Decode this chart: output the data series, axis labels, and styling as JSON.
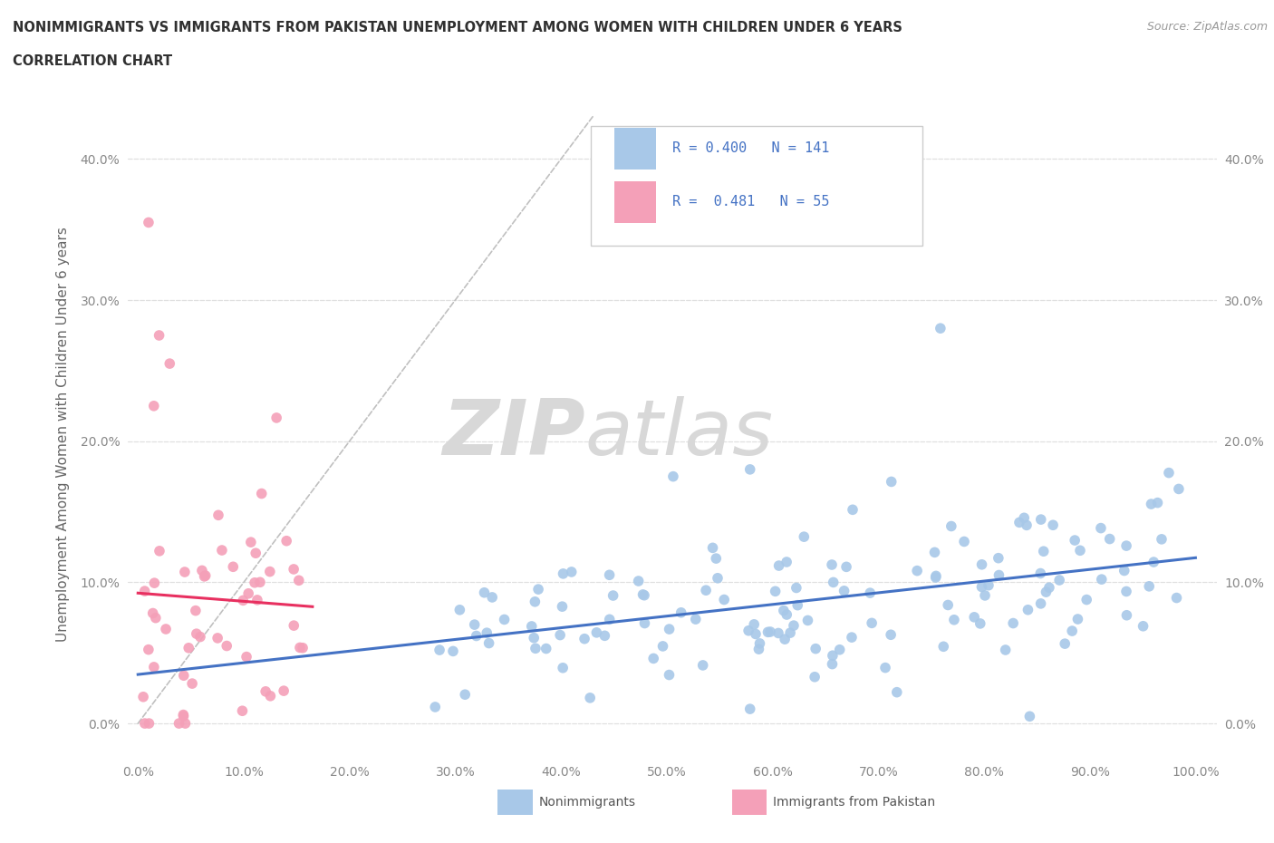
{
  "title_line1": "NONIMMIGRANTS VS IMMIGRANTS FROM PAKISTAN UNEMPLOYMENT AMONG WOMEN WITH CHILDREN UNDER 6 YEARS",
  "title_line2": "CORRELATION CHART",
  "source": "Source: ZipAtlas.com",
  "ylabel": "Unemployment Among Women with Children Under 6 years",
  "xlim": [
    -0.01,
    1.02
  ],
  "ylim": [
    -0.025,
    0.435
  ],
  "yticks": [
    0.0,
    0.1,
    0.2,
    0.3,
    0.4
  ],
  "ytick_labels": [
    "0.0%",
    "10.0%",
    "20.0%",
    "30.0%",
    "40.0%"
  ],
  "xticks": [
    0.0,
    0.1,
    0.2,
    0.3,
    0.4,
    0.5,
    0.6,
    0.7,
    0.8,
    0.9,
    1.0
  ],
  "xtick_labels": [
    "0.0%",
    "10.0%",
    "20.0%",
    "30.0%",
    "40.0%",
    "50.0%",
    "60.0%",
    "70.0%",
    "80.0%",
    "90.0%",
    "100.0%"
  ],
  "nonimm_R": 0.4,
  "nonimm_N": 141,
  "immig_R": 0.481,
  "immig_N": 55,
  "nonimm_color": "#a8c8e8",
  "immig_color": "#f4a0b8",
  "nonimm_line_color": "#4472c4",
  "immig_line_color": "#e83060",
  "title_color": "#303030",
  "legend_color": "#4472c4",
  "axis_color": "#888888",
  "grid_color": "#e0e0e0",
  "watermark_color": "#d8d8d8",
  "diag_color": "#c0c0c0"
}
